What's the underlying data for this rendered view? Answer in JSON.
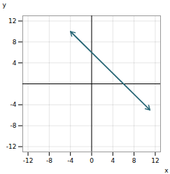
{
  "chart_data": {
    "type": "line",
    "x": [
      -4,
      11
    ],
    "values": [
      10,
      -5
    ],
    "color": "#2e6b7a",
    "marker": "arrow",
    "xlim": [
      -13,
      13
    ],
    "ylim": [
      -13,
      13
    ],
    "xticks": [
      -12,
      -8,
      -4,
      0,
      4,
      8,
      12
    ],
    "yticks": [
      -12,
      -8,
      -4,
      4,
      8,
      12
    ],
    "xlabel": "x",
    "ylabel": "y",
    "grid": true
  }
}
